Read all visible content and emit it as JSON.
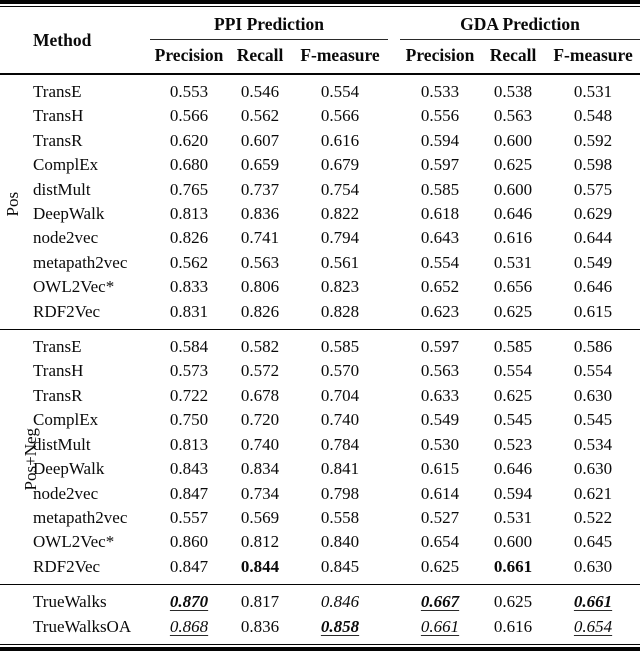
{
  "colors": {
    "background": "#ffffff",
    "text": "#0a0a0a",
    "rule": "#050505"
  },
  "table": {
    "header": {
      "method_label": "Method",
      "groups": [
        {
          "label": "PPI Prediction",
          "columns": [
            "Precision",
            "Recall",
            "F-measure"
          ]
        },
        {
          "label": "GDA Prediction",
          "columns": [
            "Precision",
            "Recall",
            "F-measure"
          ]
        }
      ]
    },
    "row_groups": [
      {
        "id": "pos",
        "label": "Pos",
        "rows": [
          {
            "method": "TransE",
            "values": [
              {
                "v": "0.553"
              },
              {
                "v": "0.546"
              },
              {
                "v": "0.554"
              },
              {
                "v": "0.533"
              },
              {
                "v": "0.538"
              },
              {
                "v": "0.531"
              }
            ]
          },
          {
            "method": "TransH",
            "values": [
              {
                "v": "0.566"
              },
              {
                "v": "0.562"
              },
              {
                "v": "0.566"
              },
              {
                "v": "0.556"
              },
              {
                "v": "0.563"
              },
              {
                "v": "0.548"
              }
            ]
          },
          {
            "method": "TransR",
            "values": [
              {
                "v": "0.620"
              },
              {
                "v": "0.607"
              },
              {
                "v": "0.616"
              },
              {
                "v": "0.594"
              },
              {
                "v": "0.600"
              },
              {
                "v": "0.592"
              }
            ]
          },
          {
            "method": "ComplEx",
            "values": [
              {
                "v": "0.680"
              },
              {
                "v": "0.659"
              },
              {
                "v": "0.679"
              },
              {
                "v": "0.597"
              },
              {
                "v": "0.625"
              },
              {
                "v": "0.598"
              }
            ]
          },
          {
            "method": "distMult",
            "values": [
              {
                "v": "0.765"
              },
              {
                "v": "0.737"
              },
              {
                "v": "0.754"
              },
              {
                "v": "0.585"
              },
              {
                "v": "0.600"
              },
              {
                "v": "0.575"
              }
            ]
          },
          {
            "method": "DeepWalk",
            "values": [
              {
                "v": "0.813"
              },
              {
                "v": "0.836"
              },
              {
                "v": "0.822"
              },
              {
                "v": "0.618"
              },
              {
                "v": "0.646"
              },
              {
                "v": "0.629"
              }
            ]
          },
          {
            "method": "node2vec",
            "values": [
              {
                "v": "0.826"
              },
              {
                "v": "0.741"
              },
              {
                "v": "0.794"
              },
              {
                "v": "0.643"
              },
              {
                "v": "0.616"
              },
              {
                "v": "0.644"
              }
            ]
          },
          {
            "method": "metapath2vec",
            "values": [
              {
                "v": "0.562"
              },
              {
                "v": "0.563"
              },
              {
                "v": "0.561"
              },
              {
                "v": "0.554"
              },
              {
                "v": "0.531"
              },
              {
                "v": "0.549"
              }
            ]
          },
          {
            "method": "OWL2Vec*",
            "values": [
              {
                "v": "0.833"
              },
              {
                "v": "0.806"
              },
              {
                "v": "0.823"
              },
              {
                "v": "0.652"
              },
              {
                "v": "0.656"
              },
              {
                "v": "0.646"
              }
            ]
          },
          {
            "method": "RDF2Vec",
            "values": [
              {
                "v": "0.831"
              },
              {
                "v": "0.826"
              },
              {
                "v": "0.828"
              },
              {
                "v": "0.623"
              },
              {
                "v": "0.625"
              },
              {
                "v": "0.615"
              }
            ]
          }
        ]
      },
      {
        "id": "pos-neg",
        "label": "Pos+Neg",
        "rows": [
          {
            "method": "TransE",
            "values": [
              {
                "v": "0.584"
              },
              {
                "v": "0.582"
              },
              {
                "v": "0.585"
              },
              {
                "v": "0.597"
              },
              {
                "v": "0.585"
              },
              {
                "v": "0.586"
              }
            ]
          },
          {
            "method": "TransH",
            "values": [
              {
                "v": "0.573"
              },
              {
                "v": "0.572"
              },
              {
                "v": "0.570"
              },
              {
                "v": "0.563"
              },
              {
                "v": "0.554"
              },
              {
                "v": "0.554"
              }
            ]
          },
          {
            "method": "TransR",
            "values": [
              {
                "v": "0.722"
              },
              {
                "v": "0.678"
              },
              {
                "v": "0.704"
              },
              {
                "v": "0.633"
              },
              {
                "v": "0.625"
              },
              {
                "v": "0.630"
              }
            ]
          },
          {
            "method": "ComplEx",
            "values": [
              {
                "v": "0.750"
              },
              {
                "v": "0.720"
              },
              {
                "v": "0.740"
              },
              {
                "v": "0.549"
              },
              {
                "v": "0.545"
              },
              {
                "v": "0.545"
              }
            ]
          },
          {
            "method": "distMult",
            "values": [
              {
                "v": "0.813"
              },
              {
                "v": "0.740"
              },
              {
                "v": "0.784"
              },
              {
                "v": "0.530"
              },
              {
                "v": "0.523"
              },
              {
                "v": "0.534"
              }
            ]
          },
          {
            "method": "DeepWalk",
            "values": [
              {
                "v": "0.843"
              },
              {
                "v": "0.834"
              },
              {
                "v": "0.841"
              },
              {
                "v": "0.615"
              },
              {
                "v": "0.646"
              },
              {
                "v": "0.630"
              }
            ]
          },
          {
            "method": "node2vec",
            "values": [
              {
                "v": "0.847"
              },
              {
                "v": "0.734"
              },
              {
                "v": "0.798"
              },
              {
                "v": "0.614"
              },
              {
                "v": "0.594"
              },
              {
                "v": "0.621"
              }
            ]
          },
          {
            "method": "metapath2vec",
            "values": [
              {
                "v": "0.557"
              },
              {
                "v": "0.569"
              },
              {
                "v": "0.558"
              },
              {
                "v": "0.527"
              },
              {
                "v": "0.531"
              },
              {
                "v": "0.522"
              }
            ]
          },
          {
            "method": "OWL2Vec*",
            "values": [
              {
                "v": "0.860"
              },
              {
                "v": "0.812"
              },
              {
                "v": "0.840"
              },
              {
                "v": "0.654"
              },
              {
                "v": "0.600"
              },
              {
                "v": "0.645"
              }
            ]
          },
          {
            "method": "RDF2Vec",
            "values": [
              {
                "v": "0.847"
              },
              {
                "v": "0.844",
                "f": "b"
              },
              {
                "v": "0.845"
              },
              {
                "v": "0.625"
              },
              {
                "v": "0.661",
                "f": "b"
              },
              {
                "v": "0.630"
              }
            ]
          }
        ]
      },
      {
        "id": "truewalks",
        "label": "",
        "rows": [
          {
            "method": "TrueWalks",
            "values": [
              {
                "v": "0.870",
                "f": "biu"
              },
              {
                "v": "0.817"
              },
              {
                "v": "0.846",
                "f": "i"
              },
              {
                "v": "0.667",
                "f": "biu"
              },
              {
                "v": "0.625"
              },
              {
                "v": "0.661",
                "f": "biu"
              }
            ]
          },
          {
            "method": "TrueWalksOA",
            "values": [
              {
                "v": "0.868",
                "f": "iu"
              },
              {
                "v": "0.836"
              },
              {
                "v": "0.858",
                "f": "biu"
              },
              {
                "v": "0.661",
                "f": "iu"
              },
              {
                "v": "0.616"
              },
              {
                "v": "0.654",
                "f": "iu"
              }
            ]
          }
        ]
      }
    ]
  }
}
